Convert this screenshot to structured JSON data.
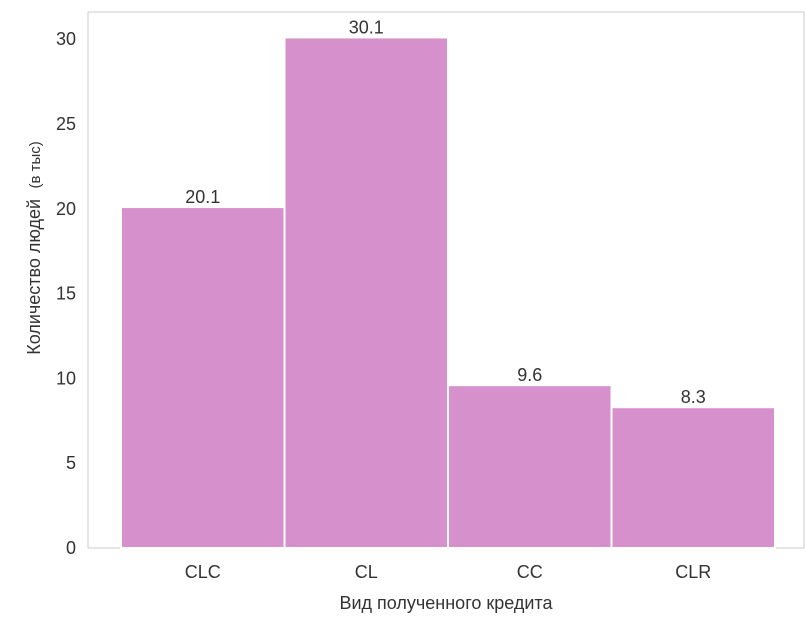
{
  "chart_data": {
    "type": "bar",
    "title": "",
    "xlabel": "Вид полученного кредита",
    "ylabel": "Количество людей",
    "ylabel_suffix": "(в тыс)",
    "categories": [
      "CLC",
      "CL",
      "CC",
      "CLR"
    ],
    "values": [
      20.1,
      30.1,
      9.6,
      8.3
    ],
    "data_labels": [
      "20.1",
      "30.1",
      "9.6",
      "8.3"
    ],
    "yticks": [
      0,
      5,
      10,
      15,
      20,
      25,
      30
    ],
    "ylim": [
      0,
      31.6
    ],
    "grid": false,
    "bar_color": "#d690cb",
    "axis_color": "#cccccc",
    "text_color": "#333333"
  }
}
